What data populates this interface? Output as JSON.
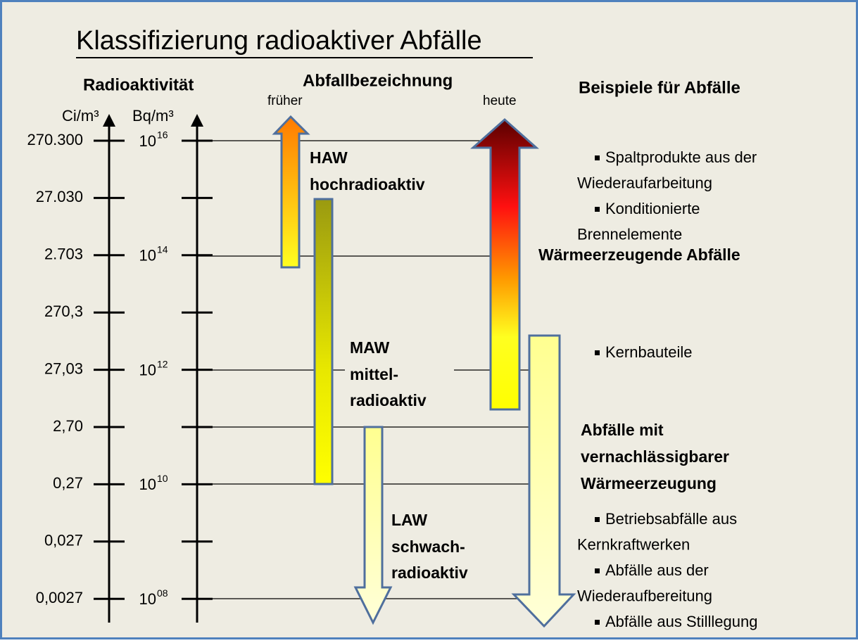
{
  "title": "Klassifizierung radioaktiver Abfälle",
  "headers": {
    "radioactivity": "Radioaktivität",
    "waste_designation": "Abfallbezeichnung",
    "earlier": "früher",
    "today": "heute",
    "examples": "Beispiele für Abfälle"
  },
  "axes": {
    "ci_unit": "Ci/m³",
    "bq_unit": "Bq/m³",
    "ci_labels": [
      "270.300",
      "27.030",
      "2.703",
      "270,3",
      "27,03",
      "2,70",
      "0,27",
      "0,027",
      "0,0027"
    ],
    "bq_labels": [
      {
        "base": "10",
        "exp": "16"
      },
      {
        "base": "10",
        "exp": "14"
      },
      {
        "base": "10",
        "exp": "12"
      },
      {
        "base": "10",
        "exp": "10"
      },
      {
        "base": "10",
        "exp": "08"
      }
    ]
  },
  "classes": [
    {
      "code": "HAW",
      "name": [
        "hochradioaktiv"
      ]
    },
    {
      "code": "MAW",
      "name": [
        "mittel-",
        "radioaktiv"
      ]
    },
    {
      "code": "LAW",
      "name": [
        "schwach-",
        "radioaktiv"
      ]
    }
  ],
  "examples": {
    "heat_generating": {
      "items": [
        [
          "Spaltprodukte aus der",
          "Wiederaufarbeitung"
        ],
        [
          "Konditionierte",
          "Brennelemente"
        ]
      ],
      "heading": [
        "Wärmeerzeugende Abfälle"
      ]
    },
    "intermediate": {
      "items": [
        [
          "Kernbauteile"
        ]
      ]
    },
    "negligible_heat": {
      "heading": [
        "Abfälle mit",
        "vernachlässigbarer",
        "Wärmeerzeugung"
      ],
      "items": [
        [
          "Betriebsabfälle aus",
          "Kernkraftwerken"
        ],
        [
          "Abfälle aus der",
          "Wiederaufbereitung"
        ],
        [
          "Abfälle aus Stilllegung"
        ]
      ]
    }
  }
}
